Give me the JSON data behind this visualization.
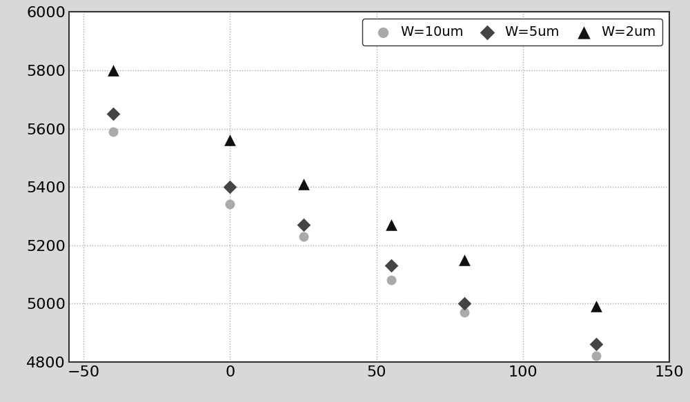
{
  "series": [
    {
      "label": "W=10um",
      "x": [
        -40,
        0,
        25,
        55,
        80,
        125
      ],
      "y": [
        5590,
        5340,
        5230,
        5080,
        4970,
        4820
      ],
      "color": "#aaaaaa",
      "marker": "o",
      "markersize": 10,
      "zorder": 2
    },
    {
      "label": "W=5um",
      "x": [
        -40,
        0,
        25,
        55,
        80,
        125
      ],
      "y": [
        5650,
        5400,
        5270,
        5130,
        5000,
        4860
      ],
      "color": "#444444",
      "marker": "D",
      "markersize": 10,
      "zorder": 3
    },
    {
      "label": "W=2um",
      "x": [
        -40,
        0,
        25,
        55,
        80,
        125
      ],
      "y": [
        5800,
        5560,
        5410,
        5270,
        5150,
        4990
      ],
      "color": "#111111",
      "marker": "^",
      "markersize": 12,
      "zorder": 4
    }
  ],
  "xlim": [
    -55,
    150
  ],
  "ylim": [
    4800,
    6000
  ],
  "xticks": [
    -50,
    0,
    50,
    100,
    150
  ],
  "yticks": [
    4800,
    5000,
    5200,
    5400,
    5600,
    5800,
    6000
  ],
  "grid_color": "#aaaaaa",
  "grid_linestyle": ":",
  "grid_linewidth": 1.0,
  "plot_bg_color": "#ffffff",
  "fig_bg_color": "#d8d8d8",
  "legend_loc": "upper right",
  "legend_fontsize": 14,
  "tick_labelsize": 16,
  "figure_width": 10.0,
  "figure_height": 5.83,
  "spine_color": "#333333",
  "spine_linewidth": 1.5
}
